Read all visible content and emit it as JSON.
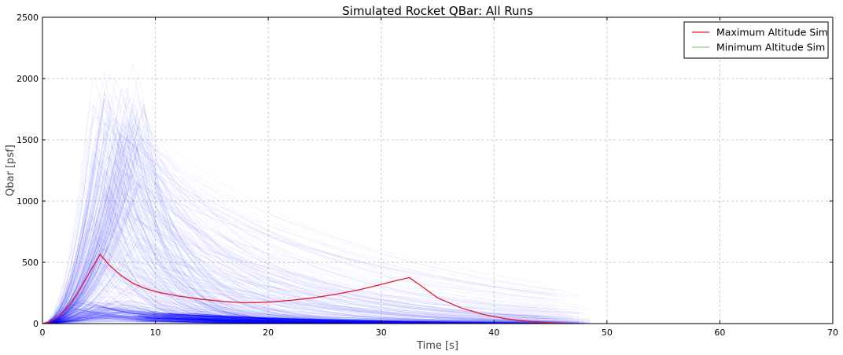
{
  "chart_data": {
    "type": "line",
    "title": "Simulated Rocket QBar: All Runs",
    "xlabel": "Time [s]",
    "ylabel": "Qbar [psf]",
    "xlim": [
      0,
      70
    ],
    "ylim": [
      0,
      2500
    ],
    "xticks": [
      "0",
      "10",
      "20",
      "30",
      "40",
      "50",
      "60",
      "70"
    ],
    "yticks": [
      "0",
      "500",
      "1000",
      "1500",
      "2000",
      "2500"
    ],
    "grid": true,
    "legend_position": "top-right",
    "ensemble_color": "#0000ff",
    "series": [
      {
        "name": "Maximum Altitude Sim",
        "color": "#e8192c",
        "x": [
          0,
          0.5,
          1,
          1.5,
          2,
          2.5,
          3,
          3.5,
          4,
          4.5,
          5.1,
          6,
          7,
          8,
          9,
          10,
          12,
          14,
          16,
          18,
          20,
          22,
          24,
          26,
          28,
          30,
          31.5,
          32.5,
          33.5,
          35,
          37,
          39,
          41,
          43,
          45,
          47
        ],
        "y": [
          0,
          10,
          30,
          65,
          110,
          165,
          230,
          310,
          390,
          470,
          565,
          470,
          390,
          330,
          290,
          260,
          225,
          200,
          180,
          170,
          175,
          190,
          210,
          240,
          275,
          320,
          355,
          375,
          310,
          210,
          130,
          75,
          40,
          18,
          6,
          0
        ]
      },
      {
        "name": "Minimum Altitude Sim",
        "color": "#7fd67f",
        "x": [],
        "y": []
      }
    ]
  }
}
